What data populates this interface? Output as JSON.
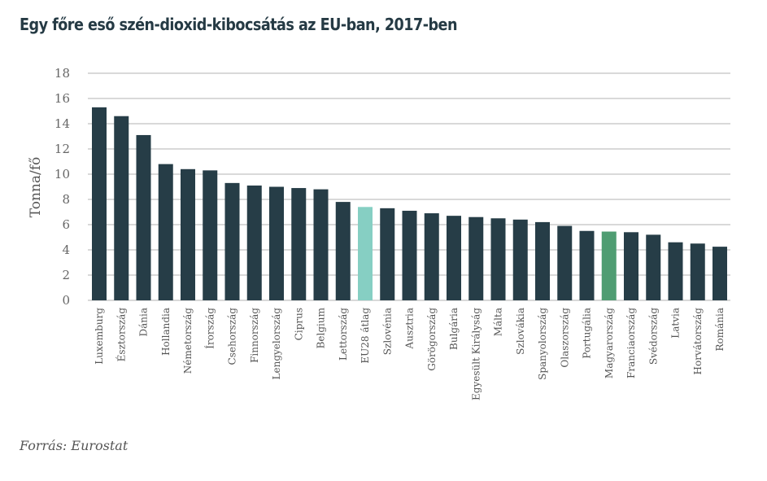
{
  "chart_data": {
    "type": "bar",
    "title": "Egy főre eső szén-dioxid-kibocsátás az EU-ban, 2017-ben",
    "xlabel": "",
    "ylabel": "Tonna/fő",
    "ylim": [
      0,
      18
    ],
    "yticks": [
      0,
      2,
      4,
      6,
      8,
      10,
      12,
      14,
      16,
      18
    ],
    "grid": true,
    "legend": "none",
    "categories": [
      "Luxemburg",
      "Észtország",
      "Dánia",
      "Hollandia",
      "Németország",
      "Írország",
      "Csehország",
      "Finnország",
      "Lengyelország",
      "Ciprus",
      "Belgium",
      "Lettország",
      "EU28 átlag",
      "Szlovénia",
      "Ausztria",
      "Görögország",
      "Bulgária",
      "Egyesült Királyság",
      "Málta",
      "Szlovákia",
      "Spanyolország",
      "Olaszország",
      "Portugália",
      "Magyarország",
      "Franciaország",
      "Svédország",
      "Latvia",
      "Horvátország",
      "Románia"
    ],
    "values": [
      15.3,
      14.6,
      13.1,
      10.8,
      10.4,
      10.3,
      9.3,
      9.1,
      9.0,
      8.9,
      8.8,
      7.8,
      7.4,
      7.3,
      7.1,
      6.9,
      6.7,
      6.6,
      6.5,
      6.4,
      6.2,
      5.9,
      5.5,
      5.45,
      5.4,
      5.2,
      4.6,
      4.5,
      4.25
    ],
    "colors": {
      "default": "#263d47",
      "highlights": {
        "EU28 átlag": "#86cfc3",
        "Magyarország": "#4f9d72"
      },
      "grid": "#d9d9d9"
    }
  },
  "source": "Forrás: Eurostat"
}
